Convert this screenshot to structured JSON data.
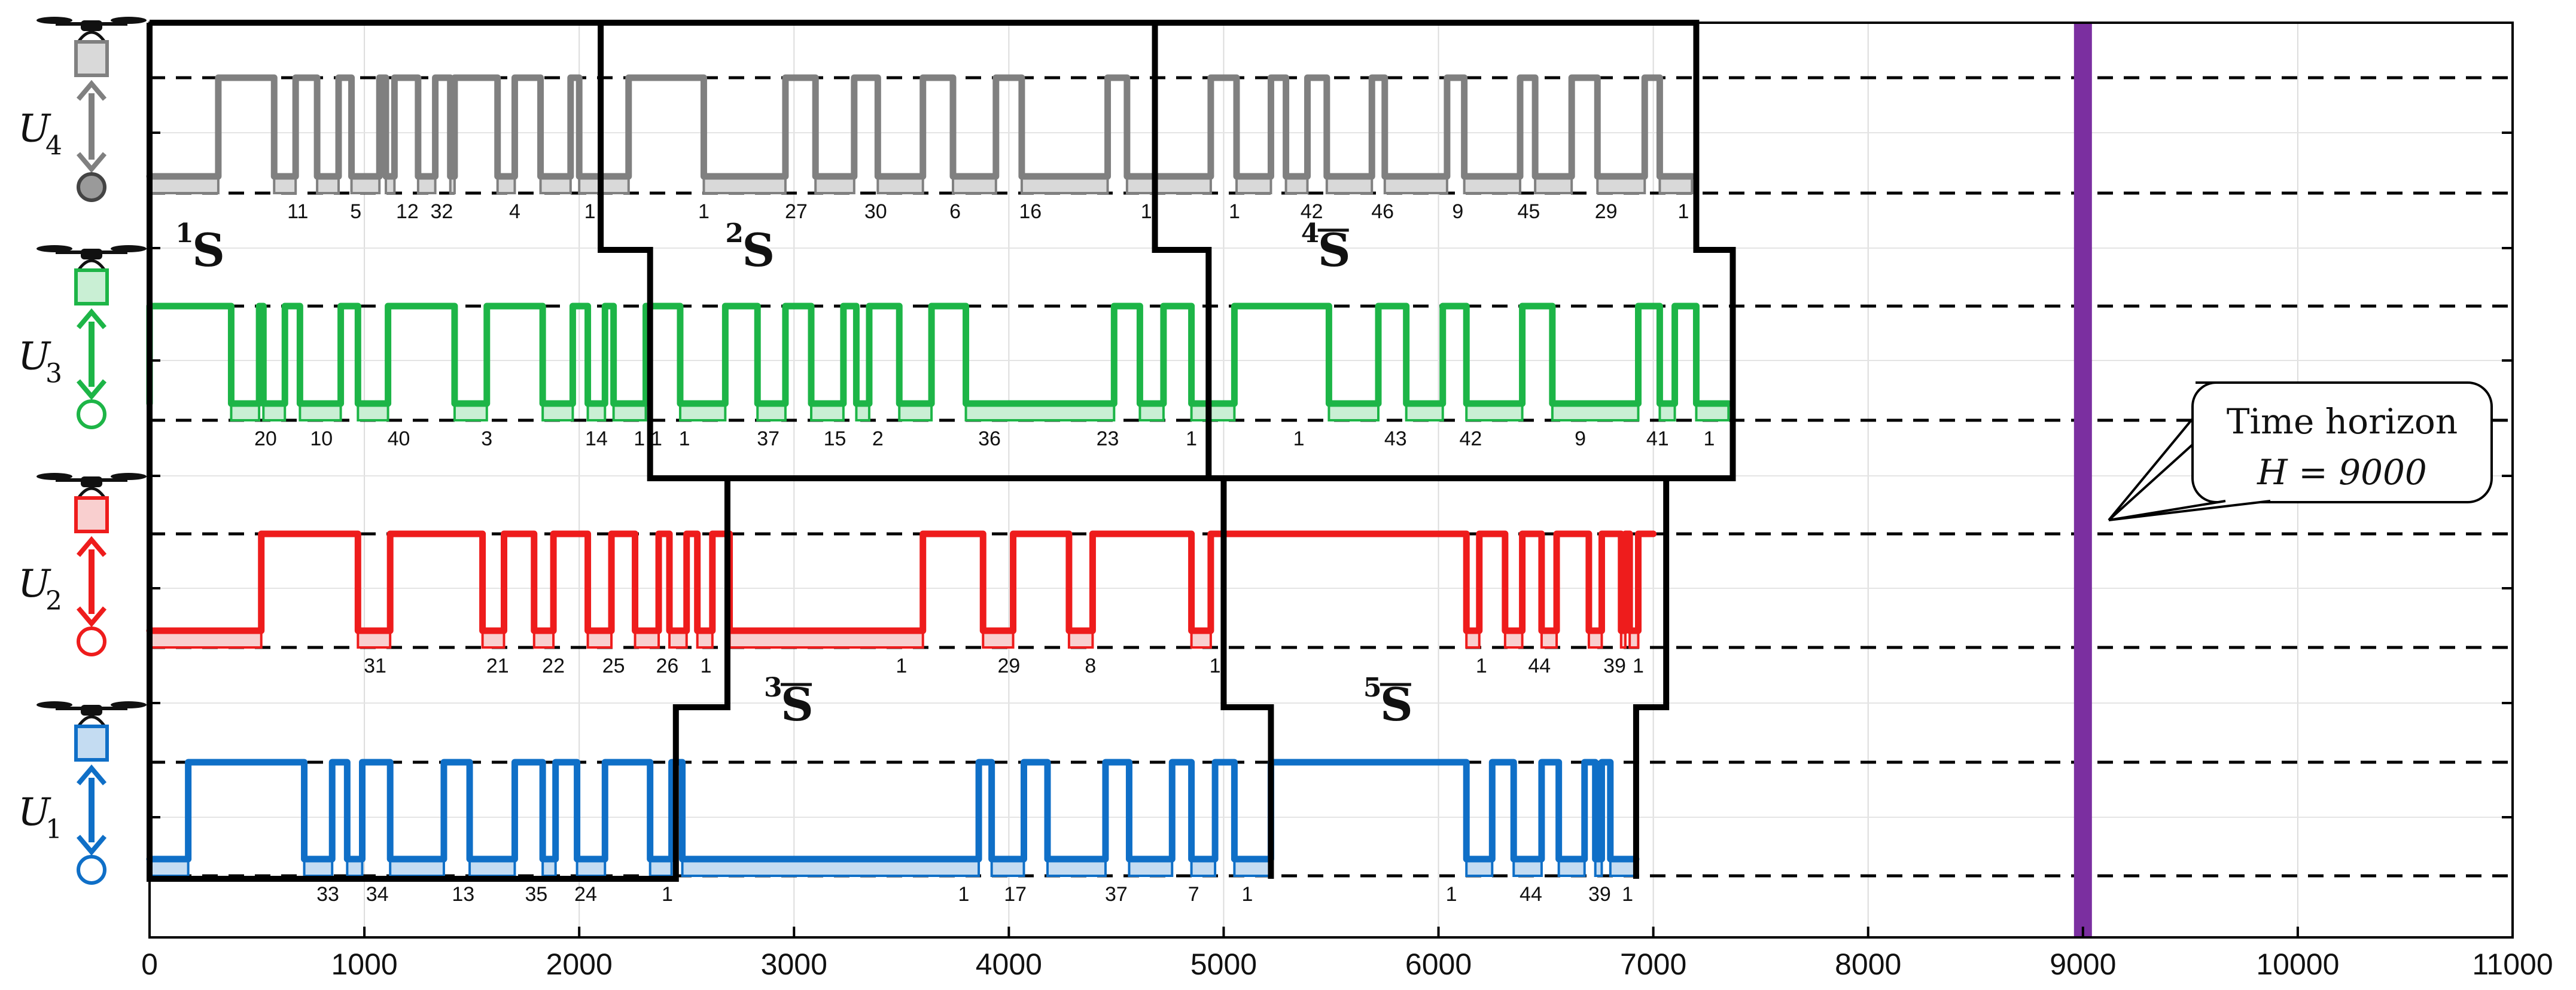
{
  "chart_data": {
    "type": "line",
    "xlim": [
      0,
      11000
    ],
    "x_ticks": [
      0,
      1000,
      2000,
      3000,
      4000,
      5000,
      6000,
      7000,
      8000,
      9000,
      10000,
      11000
    ],
    "grid": true,
    "horizon": {
      "value": 9000,
      "color": "#7b2fa0",
      "callout_line1": "Time horizon",
      "callout_line2": "H = 9000"
    },
    "uavs": [
      {
        "letter": "U",
        "index": "4",
        "color": "#808080",
        "fill": "#d9d9d9",
        "transitions": [
          0,
          320,
          580,
          680,
          780,
          880,
          940,
          1070,
          1100,
          1140,
          1250,
          1330,
          1400,
          1420,
          1620,
          1700,
          1820,
          1960,
          2000,
          2230,
          2580,
          2960,
          3100,
          3280,
          3390,
          3600,
          3740,
          3940,
          4060,
          4460,
          4550,
          4940,
          5060,
          5220,
          5290,
          5390,
          5480,
          5690,
          5750,
          6040,
          6120,
          6380,
          6450,
          6620,
          6740,
          6960,
          7030,
          7180
        ],
        "task_labels": [
          {
            "x": 690,
            "text": "11"
          },
          {
            "x": 960,
            "text": "5"
          },
          {
            "x": 1200,
            "text": "12"
          },
          {
            "x": 1360,
            "text": "32"
          },
          {
            "x": 1700,
            "text": "4"
          },
          {
            "x": 2050,
            "text": "1"
          },
          {
            "x": 2580,
            "text": "1"
          },
          {
            "x": 3010,
            "text": "27"
          },
          {
            "x": 3380,
            "text": "30"
          },
          {
            "x": 3750,
            "text": "6"
          },
          {
            "x": 4100,
            "text": "16"
          },
          {
            "x": 4640,
            "text": "1"
          },
          {
            "x": 5050,
            "text": "1"
          },
          {
            "x": 5410,
            "text": "42"
          },
          {
            "x": 5740,
            "text": "46"
          },
          {
            "x": 6090,
            "text": "9"
          },
          {
            "x": 6420,
            "text": "45"
          },
          {
            "x": 6780,
            "text": "29"
          },
          {
            "x": 7140,
            "text": "1"
          }
        ]
      },
      {
        "letter": "U",
        "index": "3",
        "color": "#1db547",
        "fill": "#c9efd4",
        "transitions": [
          0,
          0,
          380,
          510,
          530,
          630,
          700,
          890,
          970,
          1110,
          1420,
          1570,
          1830,
          1970,
          2040,
          2120,
          2160,
          2310,
          2470,
          2680,
          2830,
          2960,
          3080,
          3230,
          3290,
          3350,
          3490,
          3640,
          3800,
          4490,
          4610,
          4720,
          4850,
          5050,
          5490,
          5720,
          5850,
          6020,
          6130,
          6390,
          6530,
          6930,
          7030,
          7100,
          7200,
          7350
        ],
        "task_labels": [
          {
            "x": 540,
            "text": "20"
          },
          {
            "x": 800,
            "text": "10"
          },
          {
            "x": 1160,
            "text": "40"
          },
          {
            "x": 1570,
            "text": "3"
          },
          {
            "x": 2080,
            "text": "14"
          },
          {
            "x": 2280,
            "text": "1"
          },
          {
            "x": 2360,
            "text": "1"
          },
          {
            "x": 2490,
            "text": "1"
          },
          {
            "x": 2880,
            "text": "37"
          },
          {
            "x": 3190,
            "text": "15"
          },
          {
            "x": 3390,
            "text": "2"
          },
          {
            "x": 3910,
            "text": "36"
          },
          {
            "x": 4460,
            "text": "23"
          },
          {
            "x": 4850,
            "text": "1"
          },
          {
            "x": 5350,
            "text": "1"
          },
          {
            "x": 5800,
            "text": "43"
          },
          {
            "x": 6150,
            "text": "42"
          },
          {
            "x": 6660,
            "text": "9"
          },
          {
            "x": 7020,
            "text": "41"
          },
          {
            "x": 7260,
            "text": "1"
          }
        ]
      },
      {
        "letter": "U",
        "index": "2",
        "color": "#ee1c1c",
        "fill": "#f9cfcf",
        "transitions": [
          0,
          520,
          970,
          1120,
          1550,
          1650,
          1790,
          1880,
          2040,
          2150,
          2260,
          2370,
          2420,
          2500,
          2550,
          2620,
          2700,
          3600,
          3880,
          4020,
          4280,
          4390,
          4850,
          4940,
          6130,
          6190,
          6310,
          6390,
          6480,
          6550,
          6700,
          6760,
          6850,
          6870,
          6890,
          6930,
          7000
        ],
        "task_labels": [
          {
            "x": 1050,
            "text": "31"
          },
          {
            "x": 1620,
            "text": "21"
          },
          {
            "x": 1880,
            "text": "22"
          },
          {
            "x": 2160,
            "text": "25"
          },
          {
            "x": 2410,
            "text": "26"
          },
          {
            "x": 2590,
            "text": "1"
          },
          {
            "x": 3500,
            "text": "1"
          },
          {
            "x": 4000,
            "text": "29"
          },
          {
            "x": 4380,
            "text": "8"
          },
          {
            "x": 4960,
            "text": "1"
          },
          {
            "x": 6200,
            "text": "1"
          },
          {
            "x": 6470,
            "text": "44"
          },
          {
            "x": 6820,
            "text": "39"
          },
          {
            "x": 6930,
            "text": "1"
          }
        ]
      },
      {
        "letter": "U",
        "index": "1",
        "color": "#0f6fc7",
        "fill": "#c4dcf2",
        "transitions": [
          0,
          180,
          720,
          850,
          920,
          990,
          1120,
          1370,
          1490,
          1700,
          1830,
          1890,
          1990,
          2120,
          2330,
          2430,
          2480,
          3860,
          3920,
          4070,
          4180,
          4450,
          4560,
          4760,
          4850,
          4960,
          5050,
          5220,
          6130,
          6250,
          6350,
          6480,
          6560,
          6680,
          6730,
          6760,
          6800,
          6920
        ],
        "task_labels": [
          {
            "x": 830,
            "text": "33"
          },
          {
            "x": 1060,
            "text": "34"
          },
          {
            "x": 1460,
            "text": "13"
          },
          {
            "x": 1800,
            "text": "35"
          },
          {
            "x": 2030,
            "text": "24"
          },
          {
            "x": 2410,
            "text": "1"
          },
          {
            "x": 3790,
            "text": "1"
          },
          {
            "x": 4030,
            "text": "17"
          },
          {
            "x": 4500,
            "text": "37"
          },
          {
            "x": 4860,
            "text": "7"
          },
          {
            "x": 5110,
            "text": "1"
          },
          {
            "x": 6060,
            "text": "1"
          },
          {
            "x": 6430,
            "text": "44"
          },
          {
            "x": 6750,
            "text": "39"
          },
          {
            "x": 6880,
            "text": "1"
          }
        ]
      }
    ],
    "segment_labels": [
      {
        "sup": "1",
        "text": "S",
        "overline": false
      },
      {
        "sup": "2",
        "text": "S",
        "overline": false
      },
      {
        "sup": "3",
        "text": "S",
        "overline": true
      },
      {
        "sup": "4",
        "text": "S",
        "overline": true
      },
      {
        "sup": "5",
        "text": "S",
        "overline": true
      }
    ]
  }
}
